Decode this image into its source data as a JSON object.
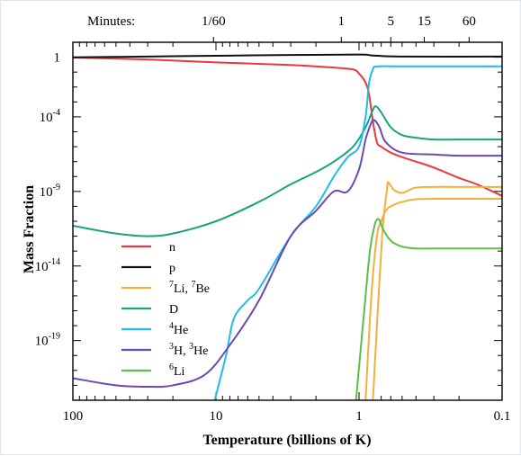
{
  "chart_data": {
    "type": "line",
    "title": "",
    "xlabel": "Temperature (billions of K)",
    "ylabel": "Mass Fraction",
    "x_scale": "log-reversed",
    "y_scale": "log",
    "xlim": [
      100,
      0.1
    ],
    "ylim": [
      1e-23,
      10.0
    ],
    "x_ticks": [
      {
        "value": 100,
        "label": "100"
      },
      {
        "value": 10,
        "label": "10"
      },
      {
        "value": 1,
        "label": "1"
      },
      {
        "value": 0.1,
        "label": "0.1"
      }
    ],
    "y_ticks": [
      {
        "value": 1,
        "base": "1",
        "exp": ""
      },
      {
        "value": 0.0001,
        "base": "10",
        "exp": "-4"
      },
      {
        "value": 1e-09,
        "base": "10",
        "exp": "-9"
      },
      {
        "value": 1e-14,
        "base": "10",
        "exp": "-14"
      },
      {
        "value": 1e-19,
        "base": "10",
        "exp": "-19"
      }
    ],
    "top_axis": {
      "title": "Minutes:",
      "ticks": [
        {
          "label": "1/60",
          "T": 10.4
        },
        {
          "label": "1",
          "T": 1.33
        },
        {
          "label": "5",
          "T": 0.6
        },
        {
          "label": "15",
          "T": 0.35
        },
        {
          "label": "60",
          "T": 0.17
        }
      ]
    },
    "series": [
      {
        "name": "n",
        "color": "#e8393d",
        "points": [
          [
            100,
            0.95
          ],
          [
            30,
            0.7
          ],
          [
            10,
            0.45
          ],
          [
            3,
            0.3
          ],
          [
            1.5,
            0.2
          ],
          [
            1.1,
            0.15
          ],
          [
            1.0,
            0.08
          ],
          [
            0.9,
            0.02
          ],
          [
            0.85,
            0.003
          ],
          [
            0.8,
            5e-05
          ],
          [
            0.75,
            2e-06
          ],
          [
            0.7,
            1e-06
          ],
          [
            0.6,
            4e-07
          ],
          [
            0.5,
            2e-07
          ],
          [
            0.4,
            1e-07
          ],
          [
            0.3,
            4e-08
          ],
          [
            0.2,
            8e-09
          ],
          [
            0.15,
            3e-09
          ],
          [
            0.1,
            5e-10
          ]
        ]
      },
      {
        "name": "p",
        "color": "#111111",
        "points": [
          [
            100,
            0.98
          ],
          [
            30,
            1.1
          ],
          [
            10,
            1.25
          ],
          [
            3,
            1.4
          ],
          [
            1,
            1.5
          ],
          [
            0.8,
            1.3
          ],
          [
            0.5,
            1.1
          ],
          [
            0.1,
            1.1
          ]
        ]
      },
      {
        "name": "Li-7 / Be-7",
        "label_parts": [
          [
            "7",
            "Li, "
          ],
          [
            "7",
            "Be"
          ]
        ],
        "color": "#f5ae3d",
        "points": [
          [
            0.8,
            1e-23
          ],
          [
            0.73,
            1e-16
          ],
          [
            0.69,
            1e-12
          ],
          [
            0.66,
            1e-10
          ],
          [
            0.64,
            1e-09
          ],
          [
            0.63,
            4e-09
          ],
          [
            0.61,
            3e-09
          ],
          [
            0.58,
            1.5e-09
          ],
          [
            0.55,
            1e-09
          ],
          [
            0.5,
            8e-10
          ],
          [
            0.45,
            1.2e-09
          ],
          [
            0.4,
            1.8e-09
          ],
          [
            0.3,
            2e-09
          ],
          [
            0.2,
            2e-09
          ],
          [
            0.1,
            2e-09
          ]
        ]
      },
      {
        "name": "Li-7 (lower branch)",
        "color": "#f5ae3d",
        "legend": false,
        "points": [
          [
            0.9,
            1e-23
          ],
          [
            0.82,
            1e-16
          ],
          [
            0.75,
            1e-12
          ],
          [
            0.7,
            1e-11
          ],
          [
            0.65,
            5e-11
          ],
          [
            0.6,
            1e-10
          ],
          [
            0.5,
            2e-10
          ],
          [
            0.4,
            3e-10
          ],
          [
            0.3,
            3.2e-10
          ],
          [
            0.2,
            3.2e-10
          ],
          [
            0.1,
            3.2e-10
          ]
        ]
      },
      {
        "name": "D",
        "color": "#16a37e",
        "points": [
          [
            100,
            5e-12
          ],
          [
            50,
            1.5e-12
          ],
          [
            30,
            1e-12
          ],
          [
            20,
            1.5e-12
          ],
          [
            10,
            1e-11
          ],
          [
            5,
            2e-10
          ],
          [
            3,
            3e-09
          ],
          [
            2,
            2e-08
          ],
          [
            1.5,
            1e-07
          ],
          [
            1.1,
            1e-06
          ],
          [
            0.9,
            2e-05
          ],
          [
            0.8,
            0.0003
          ],
          [
            0.76,
            0.0005
          ],
          [
            0.7,
            0.0002
          ],
          [
            0.6,
            2e-05
          ],
          [
            0.5,
            6e-06
          ],
          [
            0.4,
            4e-06
          ],
          [
            0.3,
            3e-06
          ],
          [
            0.2,
            3e-06
          ],
          [
            0.1,
            3e-06
          ]
        ]
      },
      {
        "name": "He-4",
        "label_parts": [
          [
            "4",
            "He"
          ]
        ],
        "color": "#1ebcea",
        "points": [
          [
            10.2,
            1e-23
          ],
          [
            8.5,
            1e-20
          ],
          [
            7.5,
            3e-18
          ],
          [
            6,
            5e-17
          ],
          [
            5,
            3e-16
          ],
          [
            3,
            1e-12
          ],
          [
            2,
            1e-10
          ],
          [
            1.5,
            1e-08
          ],
          [
            1.2,
            2e-07
          ],
          [
            1,
            1e-06
          ],
          [
            0.9,
            0.0001
          ],
          [
            0.85,
            0.02
          ],
          [
            0.8,
            0.15
          ],
          [
            0.75,
            0.24
          ],
          [
            0.5,
            0.245
          ],
          [
            0.1,
            0.245
          ]
        ]
      },
      {
        "name": "H-3 / He-3",
        "label_parts": [
          [
            "3",
            "H, "
          ],
          [
            "3",
            "He"
          ]
        ],
        "color": "#6a49b2",
        "points": [
          [
            100,
            3e-22
          ],
          [
            50,
            1e-22
          ],
          [
            30,
            8e-23
          ],
          [
            20,
            1e-22
          ],
          [
            12,
            5e-22
          ],
          [
            8,
            5e-20
          ],
          [
            5,
            5e-17
          ],
          [
            3,
            1e-12
          ],
          [
            2,
            5e-11
          ],
          [
            1.5,
            1e-09
          ],
          [
            1.2,
            1e-09
          ],
          [
            1,
            3e-08
          ],
          [
            0.9,
            3e-06
          ],
          [
            0.82,
            4e-05
          ],
          [
            0.78,
            6e-05
          ],
          [
            0.72,
            2e-05
          ],
          [
            0.65,
            2e-06
          ],
          [
            0.5,
            4e-07
          ],
          [
            0.3,
            3e-07
          ],
          [
            0.2,
            2.5e-07
          ],
          [
            0.1,
            2.5e-07
          ]
        ]
      },
      {
        "name": "Li-6",
        "label_parts": [
          [
            "6",
            "Li"
          ]
        ],
        "color": "#5bbf47",
        "points": [
          [
            1.05,
            1e-23
          ],
          [
            0.92,
            1e-17
          ],
          [
            0.84,
            1e-13
          ],
          [
            0.78,
            5e-12
          ],
          [
            0.75,
            1.3e-11
          ],
          [
            0.72,
            1.2e-11
          ],
          [
            0.68,
            3e-12
          ],
          [
            0.6,
            5e-13
          ],
          [
            0.5,
            2e-13
          ],
          [
            0.4,
            1.5e-13
          ],
          [
            0.3,
            1.5e-13
          ],
          [
            0.2,
            1.5e-13
          ],
          [
            0.1,
            1.5e-13
          ]
        ]
      }
    ]
  }
}
